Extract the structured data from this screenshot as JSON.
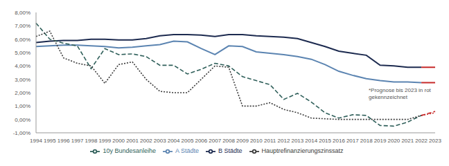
{
  "chart_data": {
    "type": "line",
    "categories": [
      "1994",
      "1995",
      "1996",
      "1997",
      "1998",
      "1999",
      "2000",
      "2001",
      "2002",
      "2003",
      "2004",
      "2005",
      "2006",
      "2007",
      "2008",
      "2009",
      "2010",
      "2011",
      "2012",
      "2013",
      "2014",
      "2015",
      "2016",
      "2017",
      "2018",
      "2019",
      "2020",
      "2021",
      "2022",
      "2023"
    ],
    "series": [
      {
        "name": "B Städte",
        "color": "#1c2a4f",
        "line_style": "solid",
        "values": [
          5.75,
          5.85,
          5.9,
          5.9,
          6.0,
          6.0,
          5.95,
          5.95,
          6.05,
          6.25,
          6.35,
          6.35,
          6.3,
          6.2,
          6.35,
          6.35,
          6.25,
          6.2,
          6.15,
          6.05,
          5.75,
          5.45,
          5.1,
          4.95,
          4.8,
          4.05,
          4.0,
          3.9,
          3.9,
          3.9
        ]
      },
      {
        "name": "A Städte",
        "color": "#5b84b1",
        "line_style": "solid",
        "values": [
          5.45,
          5.5,
          5.55,
          5.55,
          5.5,
          5.45,
          5.35,
          5.4,
          5.5,
          5.6,
          5.85,
          5.8,
          5.3,
          4.85,
          5.5,
          5.45,
          5.05,
          4.95,
          4.85,
          4.7,
          4.5,
          4.1,
          3.6,
          3.3,
          3.05,
          2.9,
          2.8,
          2.8,
          2.75,
          2.75
        ]
      },
      {
        "name": "10y Bundesanleihe",
        "color": "#2f5f5a",
        "line_style": "dashed",
        "values": [
          7.2,
          6.0,
          5.7,
          5.5,
          3.8,
          5.3,
          4.85,
          4.9,
          4.7,
          4.05,
          4.05,
          3.4,
          3.75,
          4.2,
          4.0,
          3.2,
          2.9,
          2.6,
          1.5,
          1.95,
          1.3,
          0.5,
          0.1,
          0.35,
          0.3,
          -0.45,
          -0.5,
          -0.2,
          0.3,
          0.6
        ]
      },
      {
        "name": "Hauptrefinanzierungszinssatz",
        "color": "#3a3a3a",
        "line_style": "dotted",
        "values": [
          6.2,
          6.6,
          4.6,
          4.2,
          4.0,
          2.7,
          4.1,
          4.3,
          3.0,
          2.1,
          2.0,
          2.0,
          3.0,
          4.0,
          3.9,
          1.0,
          1.0,
          1.25,
          0.75,
          0.5,
          0.1,
          0.05,
          0,
          0,
          0,
          0,
          0,
          0,
          0.3,
          0.5
        ]
      }
    ],
    "forecast": {
      "from": "2022",
      "color": "#c62828"
    },
    "annotation": "*Prognose bis 2023 in rot gekennzeichnet",
    "ylim": [
      -1,
      8
    ],
    "yticks": [
      {
        "value": -1,
        "label": "-1,00%"
      },
      {
        "value": 0,
        "label": "0,00%"
      },
      {
        "value": 1,
        "label": "1,00%"
      },
      {
        "value": 2,
        "label": "2,00%"
      },
      {
        "value": 3,
        "label": "3,00%"
      },
      {
        "value": 4,
        "label": "4,00%"
      },
      {
        "value": 5,
        "label": "5,00%"
      },
      {
        "value": 6,
        "label": "6,00%"
      },
      {
        "value": 7,
        "label": "7,00%"
      },
      {
        "value": 8,
        "label": "8,00%"
      }
    ],
    "grid": false,
    "legend": "bottom"
  }
}
